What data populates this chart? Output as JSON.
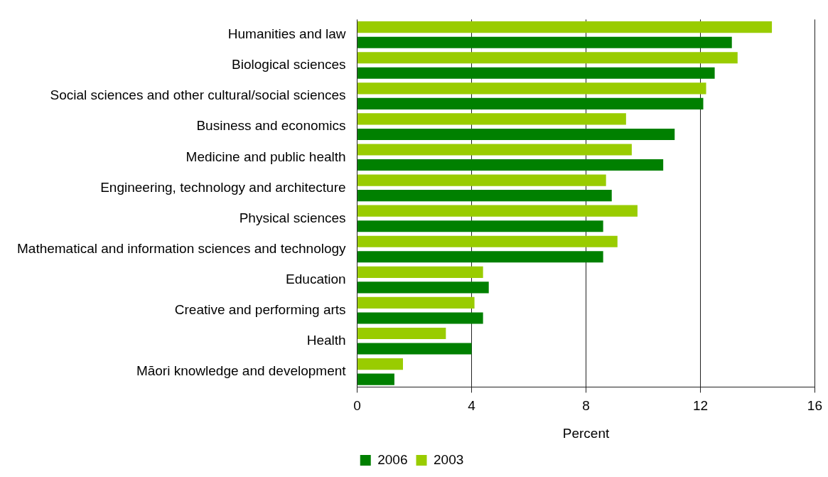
{
  "chart_data": {
    "type": "bar",
    "orientation": "horizontal",
    "xlabel": "Percent",
    "categories": [
      "Humanities and law",
      "Biological sciences",
      "Social sciences and other cultural/social sciences",
      "Business and economics",
      "Medicine and public health",
      "Engineering, technology and architecture",
      "Physical sciences",
      "Mathematical and information sciences and technology",
      "Education",
      "Creative and performing arts",
      "Health",
      "Māori knowledge and development"
    ],
    "series": [
      {
        "name": "2006",
        "color": "#008000",
        "values": [
          13.1,
          12.5,
          12.1,
          11.1,
          10.7,
          8.9,
          8.6,
          8.6,
          4.6,
          4.4,
          4.0,
          1.3
        ]
      },
      {
        "name": "2003",
        "color": "#99cc00",
        "values": [
          14.5,
          13.3,
          12.2,
          9.4,
          9.6,
          8.7,
          9.8,
          9.1,
          4.4,
          4.1,
          3.1,
          1.6
        ]
      }
    ],
    "xlim": [
      0,
      16
    ],
    "xticks": [
      0,
      4,
      8,
      12,
      16
    ],
    "grid": "x",
    "legend": "bottom"
  }
}
